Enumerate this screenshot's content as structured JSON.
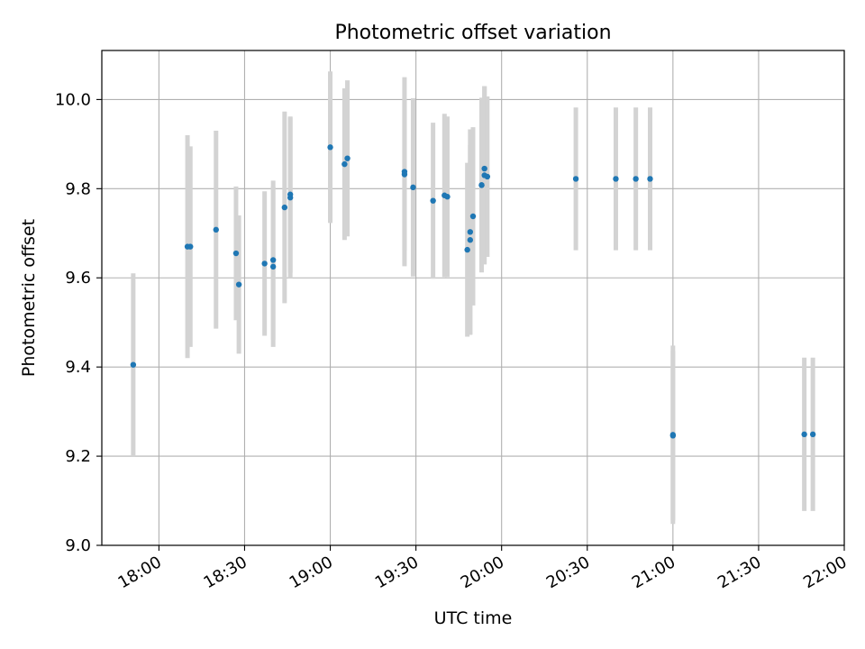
{
  "chart_data": {
    "type": "scatter",
    "title": "Photometric offset variation",
    "xlabel": "UTC time",
    "ylabel": "Photometric offset",
    "x_unit": "HH:MM UTC",
    "xlim": [
      "17:40",
      "22:00"
    ],
    "ylim": [
      9.0,
      10.11
    ],
    "x_ticks": [
      "18:00",
      "18:30",
      "19:00",
      "19:30",
      "20:00",
      "20:30",
      "21:00",
      "21:30",
      "22:00"
    ],
    "y_ticks": [
      "9.0",
      "9.2",
      "9.4",
      "9.6",
      "9.8",
      "10.0"
    ],
    "grid": true,
    "colors": {
      "point": "#1f77b4",
      "errorbar": "#d3d3d3",
      "grid": "#b0b0b0",
      "axis": "#000000"
    },
    "series": [
      {
        "points": [
          {
            "x": "17:51",
            "y": 9.405,
            "err": 0.205
          },
          {
            "x": "18:10",
            "y": 9.67,
            "err": 0.25
          },
          {
            "x": "18:11",
            "y": 9.67,
            "err": 0.225
          },
          {
            "x": "18:20",
            "y": 9.708,
            "err": 0.222
          },
          {
            "x": "18:27",
            "y": 9.655,
            "err": 0.15
          },
          {
            "x": "18:28",
            "y": 9.585,
            "err": 0.155
          },
          {
            "x": "18:37",
            "y": 9.632,
            "err": 0.162
          },
          {
            "x": "18:40",
            "y": 9.625,
            "err": 0.18
          },
          {
            "x": "18:40",
            "y": 9.64,
            "err": 0.178
          },
          {
            "x": "18:44",
            "y": 9.758,
            "err": 0.215
          },
          {
            "x": "18:46",
            "y": 9.78,
            "err": 0.18
          },
          {
            "x": "18:46",
            "y": 9.787,
            "err": 0.175
          },
          {
            "x": "19:00",
            "y": 9.893,
            "err": 0.17
          },
          {
            "x": "19:05",
            "y": 9.855,
            "err": 0.17
          },
          {
            "x": "19:06",
            "y": 9.868,
            "err": 0.175
          },
          {
            "x": "19:26",
            "y": 9.838,
            "err": 0.212
          },
          {
            "x": "19:26",
            "y": 9.832,
            "err": 0.17
          },
          {
            "x": "19:29",
            "y": 9.803,
            "err": 0.2
          },
          {
            "x": "19:36",
            "y": 9.773,
            "err": 0.175
          },
          {
            "x": "19:40",
            "y": 9.785,
            "err": 0.183
          },
          {
            "x": "19:41",
            "y": 9.782,
            "err": 0.18
          },
          {
            "x": "19:48",
            "y": 9.663,
            "err": 0.195
          },
          {
            "x": "19:49",
            "y": 9.685,
            "err": 0.213
          },
          {
            "x": "19:49",
            "y": 9.703,
            "err": 0.23
          },
          {
            "x": "19:50",
            "y": 9.738,
            "err": 0.2
          },
          {
            "x": "19:53",
            "y": 9.808,
            "err": 0.195
          },
          {
            "x": "19:53",
            "y": 9.808,
            "err": 0.196
          },
          {
            "x": "19:54",
            "y": 9.83,
            "err": 0.2
          },
          {
            "x": "19:54",
            "y": 9.845,
            "err": 0.185
          },
          {
            "x": "19:55",
            "y": 9.827,
            "err": 0.18
          },
          {
            "x": "20:26",
            "y": 9.822,
            "err": 0.16
          },
          {
            "x": "20:40",
            "y": 9.822,
            "err": 0.16
          },
          {
            "x": "20:47",
            "y": 9.822,
            "err": 0.16
          },
          {
            "x": "20:52",
            "y": 9.822,
            "err": 0.16
          },
          {
            "x": "21:00",
            "y": 9.248,
            "err": 0.2
          },
          {
            "x": "21:00",
            "y": 9.246,
            "err": 0.19
          },
          {
            "x": "21:46",
            "y": 9.249,
            "err": 0.172
          },
          {
            "x": "21:49",
            "y": 9.249,
            "err": 0.172
          }
        ]
      }
    ]
  }
}
